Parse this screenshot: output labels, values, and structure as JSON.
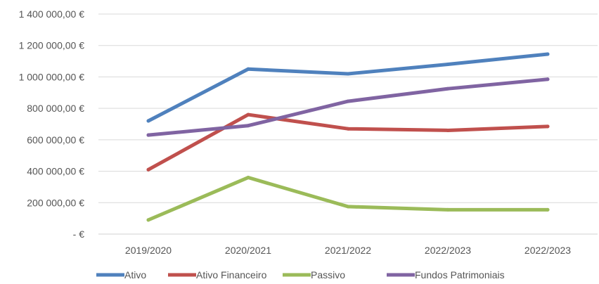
{
  "chart_data": {
    "type": "line",
    "title": "",
    "xlabel": "",
    "ylabel": "",
    "categories": [
      "2019/2020",
      "2020/2021",
      "2021/2022",
      "2022/2023",
      "2022/2023"
    ],
    "ylim": [
      0,
      1400000
    ],
    "yticks": [
      0,
      200000,
      400000,
      600000,
      800000,
      1000000,
      1200000,
      1400000
    ],
    "ytick_labels": [
      "-   €",
      "200 000,00 €",
      "400 000,00 €",
      "600 000,00 €",
      "800 000,00 €",
      "1 000 000,00 €",
      "1 200 000,00 €",
      "1 400 000,00 €"
    ],
    "grid": true,
    "legend_position": "bottom",
    "series": [
      {
        "name": "Ativo",
        "color": "#4F81BD",
        "values": [
          720000,
          1050000,
          1020000,
          1080000,
          1145000
        ]
      },
      {
        "name": "Ativo Financeiro",
        "color": "#C0504D",
        "values": [
          410000,
          760000,
          670000,
          660000,
          685000
        ]
      },
      {
        "name": "Passivo",
        "color": "#9BBB59",
        "values": [
          90000,
          360000,
          175000,
          155000,
          155000
        ]
      },
      {
        "name": "Fundos Patrimoniais",
        "color": "#8064A2",
        "values": [
          630000,
          690000,
          845000,
          925000,
          985000
        ]
      }
    ]
  }
}
